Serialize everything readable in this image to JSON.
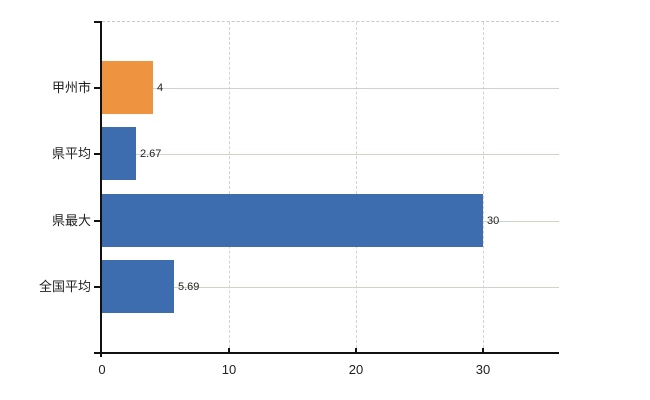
{
  "chart_data": {
    "type": "bar",
    "orientation": "horizontal",
    "title": "",
    "categories": [
      "甲州市",
      "県平均",
      "県最大",
      "全国平均"
    ],
    "values": [
      4,
      2.67,
      30,
      5.69
    ],
    "value_labels": [
      "4",
      "2.67",
      "30",
      "5.69"
    ],
    "bar_colors": [
      "#ee9340",
      "#3d6dae",
      "#3d6dae",
      "#3d6dae"
    ],
    "x_ticks": [
      0,
      10,
      20,
      30
    ],
    "x_tick_labels": [
      "0",
      "10",
      "20",
      "30"
    ],
    "xlim": [
      0,
      36
    ],
    "xlabel": "",
    "ylabel": "",
    "grid": true,
    "legend": false,
    "colors": {
      "background": "#ffffff",
      "axis": "#111111",
      "grid_horizontal": "#ccd4cc",
      "grid_vertical": "#d6cfd6",
      "top_border": "#c9c9c9",
      "text": "#222222",
      "highlight_bar": "#ee9340",
      "default_bar": "#3d6dae"
    }
  }
}
